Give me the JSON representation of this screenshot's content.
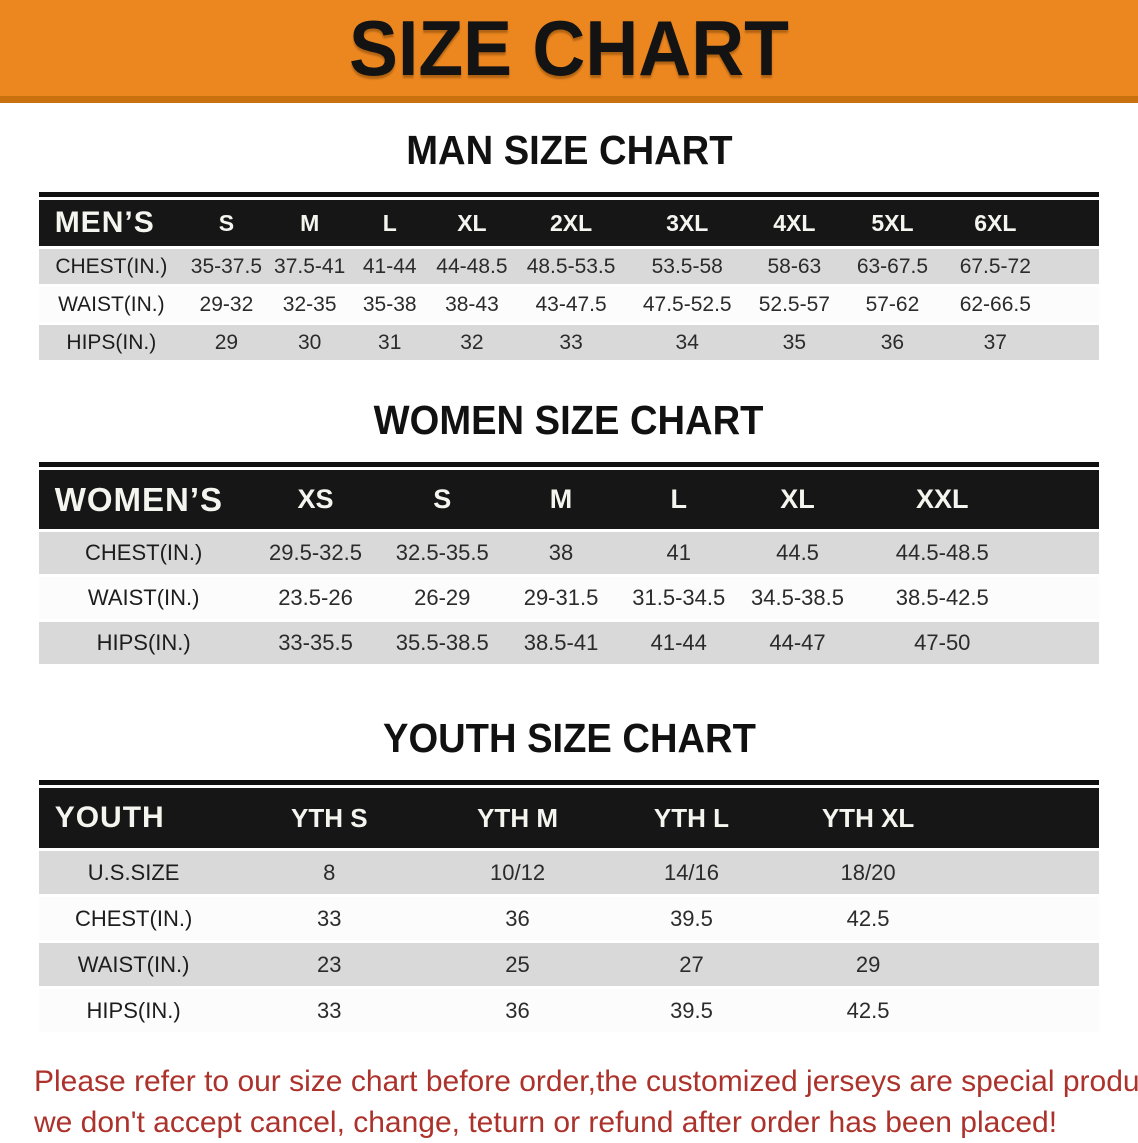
{
  "banner": {
    "title": "SIZE CHART"
  },
  "colors": {
    "banner_bg": "#EC8720",
    "banner_edge": "#C9710F",
    "table_header_bg": "#161616",
    "row_stripe": "#D9D9D9",
    "footer_text": "#AC322C"
  },
  "sections": {
    "men": {
      "title": "MAN SIZE CHART",
      "table": {
        "header": [
          "MEN’S",
          "S",
          "M",
          "L",
          "XL",
          "2XL",
          "3XL",
          "4XL",
          "5XL",
          "6XL"
        ],
        "rows": [
          {
            "label": "CHEST(IN.)",
            "values": [
              "35-37.5",
              "37.5-41",
              "41-44",
              "44-48.5",
              "48.5-53.5",
              "53.5-58",
              "58-63",
              "63-67.5",
              "67.5-72"
            ]
          },
          {
            "label": "WAIST(IN.)",
            "values": [
              "29-32",
              "32-35",
              "35-38",
              "38-43",
              "43-47.5",
              "47.5-52.5",
              "52.5-57",
              "57-62",
              "62-66.5"
            ]
          },
          {
            "label": "HIPS(IN.)",
            "values": [
              "29",
              "30",
              "31",
              "32",
              "33",
              "34",
              "35",
              "36",
              "37"
            ]
          }
        ]
      }
    },
    "women": {
      "title": "WOMEN SIZE CHART",
      "table": {
        "header": [
          "WOMEN’S",
          "XS",
          "S",
          "M",
          "L",
          "XL",
          "XXL"
        ],
        "rows": [
          {
            "label": "CHEST(IN.)",
            "values": [
              "29.5-32.5",
              "32.5-35.5",
              "38",
              "41",
              "44.5",
              "44.5-48.5"
            ]
          },
          {
            "label": "WAIST(IN.)",
            "values": [
              "23.5-26",
              "26-29",
              "29-31.5",
              "31.5-34.5",
              "34.5-38.5",
              "38.5-42.5"
            ]
          },
          {
            "label": "HIPS(IN.)",
            "values": [
              "33-35.5",
              "35.5-38.5",
              "38.5-41",
              "41-44",
              "44-47",
              "47-50"
            ]
          }
        ]
      }
    },
    "youth": {
      "title": "YOUTH SIZE CHART",
      "table": {
        "header": [
          "YOUTH",
          "YTH S",
          "YTH M",
          "YTH L",
          "YTH XL"
        ],
        "rows": [
          {
            "label": "U.S.SIZE",
            "values": [
              "8",
              "10/12",
              "14/16",
              "18/20"
            ]
          },
          {
            "label": "CHEST(IN.)",
            "values": [
              "33",
              "36",
              "39.5",
              "42.5"
            ]
          },
          {
            "label": "WAIST(IN.)",
            "values": [
              "23",
              "25",
              "27",
              "29"
            ]
          },
          {
            "label": "HIPS(IN.)",
            "values": [
              "33",
              "36",
              "39.5",
              "42.5"
            ]
          }
        ]
      }
    }
  },
  "footer": {
    "line1": "Please refer to our size chart before order,the customized jerseys are special products,",
    "line2": "we don't accept cancel, change, teturn or refund after order has been placed!"
  }
}
